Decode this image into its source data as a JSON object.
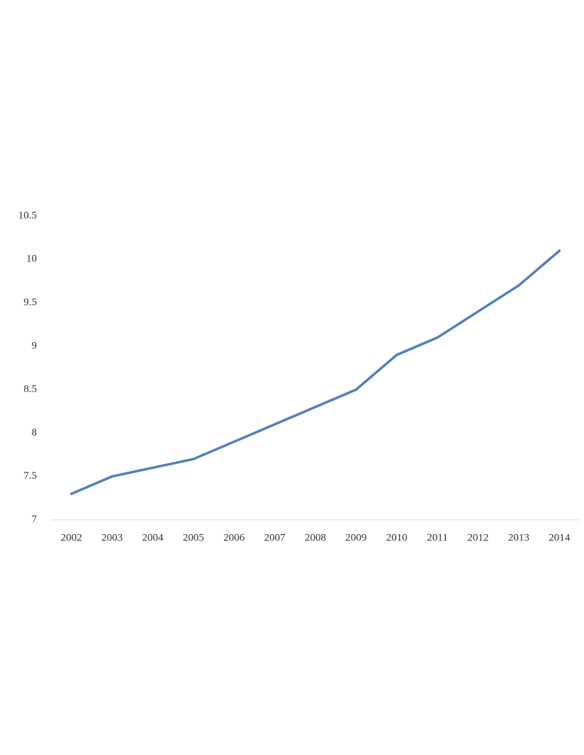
{
  "chart_data": {
    "type": "line",
    "categories": [
      "2002",
      "2003",
      "2004",
      "2005",
      "2006",
      "2007",
      "2008",
      "2009",
      "2010",
      "2011",
      "2012",
      "2013",
      "2014"
    ],
    "values": [
      7.3,
      7.5,
      7.6,
      7.7,
      7.9,
      8.1,
      8.3,
      8.5,
      8.9,
      9.1,
      9.4,
      9.7,
      10.1
    ],
    "color": "#4f7fbf",
    "ylim": [
      7,
      10.5
    ],
    "yticks": [
      7,
      7.5,
      8,
      8.5,
      9,
      9.5,
      10,
      10.5
    ],
    "grid": false
  }
}
